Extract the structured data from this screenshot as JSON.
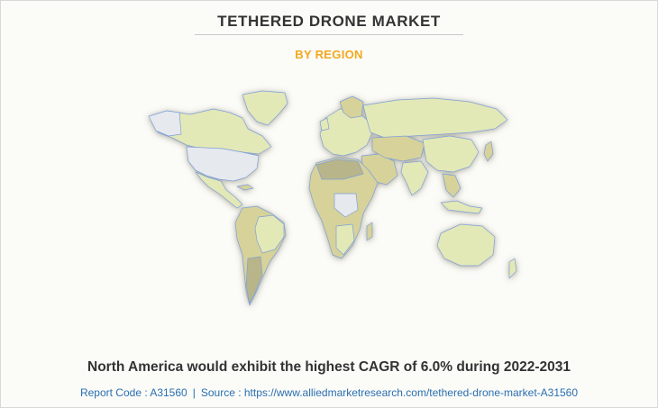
{
  "header": {
    "title": "TETHERED DRONE MARKET",
    "subtitle": "BY REGION"
  },
  "map": {
    "highlight_region": "North America",
    "colors": {
      "highlight": "#e6e9ee",
      "land_base": "#e3e8b7",
      "land_alt": "#d6d29a",
      "land_dark": "#b9b58a",
      "border": "#7f9fd8",
      "ocean": "#fbfbf8"
    }
  },
  "headline": "North America would exhibit the highest CAGR of 6.0% during 2022-2031",
  "footer": {
    "report_code": "Report Code : A31560",
    "separator": "|",
    "source": "Source : https://www.alliedmarketresearch.com/tethered-drone-market-A31560"
  }
}
